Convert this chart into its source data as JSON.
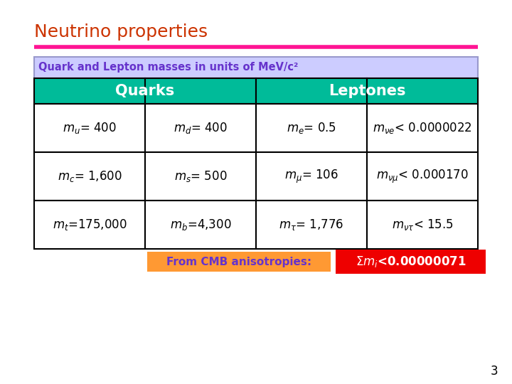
{
  "title": "Neutrino properties",
  "title_color": "#CC3300",
  "title_fontsize": 18,
  "divider_color": "#FF1493",
  "subtitle": "Quark and Lepton masses in units of MeV/c²",
  "subtitle_color": "#6633CC",
  "subtitle_bg": "#CCCCFF",
  "subtitle_border": "#9999CC",
  "header_bg": "#00BB99",
  "header_text_color": "#FFFFFF",
  "header_fontsize": 15,
  "table_border_color": "#000000",
  "cell_bg": "#FFFFFF",
  "cell_fontsize": 12,
  "headers": [
    "Quarks",
    "Leptones"
  ],
  "rows": [
    [
      "$m_u$= 400",
      "$m_d$= 400",
      "$m_e$= 0.5",
      "$m_{\\nu e}$< 0.0000022"
    ],
    [
      "$m_c$= 1,600",
      "$m_s$= 500",
      "$m_{\\mu}$= 106",
      "$m_{\\nu\\mu}$< 0.000170"
    ],
    [
      "$m_t$=175,000",
      "$m_b$=4,300",
      "$m_{\\tau}$= 1,776",
      "$m_{\\nu\\tau}$< 15.5"
    ]
  ],
  "footer_label": "From CMB anisotropies:",
  "footer_label_color": "#6633CC",
  "footer_label_bg": "#FF9933",
  "footer_label_fontsize": 11,
  "footer_value": "$\\Sigma m_i$<0.00000071",
  "footer_bg": "#EE0000",
  "footer_text_color": "#FFFFFF",
  "footer_fontsize": 12,
  "page_number": "3",
  "bg_color": "#FFFFFF"
}
